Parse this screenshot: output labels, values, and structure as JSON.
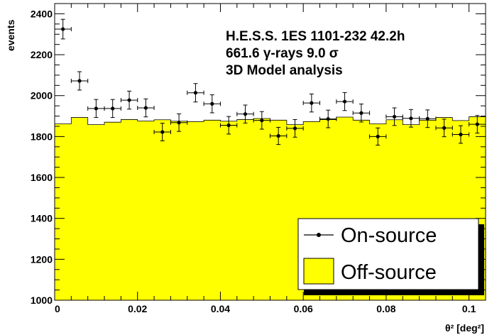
{
  "chart_data": {
    "type": "histogram",
    "title": "",
    "xlabel": "θ² [deg²]",
    "ylabel": "events",
    "xlim": [
      0,
      0.104
    ],
    "ylim": [
      1000,
      2450
    ],
    "x_ticks": [
      0,
      0.02,
      0.04,
      0.06,
      0.08,
      0.1
    ],
    "x_tick_labels": [
      "0",
      "0.02",
      "0.04",
      "0.06",
      "0.08",
      "0.1"
    ],
    "y_ticks": [
      1000,
      1200,
      1400,
      1600,
      1800,
      2000,
      2200,
      2400
    ],
    "y_tick_labels": [
      "1000",
      "1200",
      "1400",
      "1600",
      "1800",
      "2000",
      "2200",
      "2400"
    ],
    "bin_width": 0.004,
    "annotations": [
      "H.E.S.S. 1ES 1101-232 42.2h",
      "661.6 γ-rays   9.0 σ",
      "3D Model analysis"
    ],
    "legend": {
      "position": "bottom-right",
      "entries": [
        "On-source",
        "Off-source"
      ]
    },
    "series": [
      {
        "name": "On-source",
        "style": "points-with-errors",
        "color": "#000000",
        "x": [
          0.002,
          0.006,
          0.01,
          0.014,
          0.018,
          0.022,
          0.026,
          0.03,
          0.034,
          0.038,
          0.042,
          0.046,
          0.05,
          0.054,
          0.058,
          0.062,
          0.066,
          0.07,
          0.074,
          0.078,
          0.082,
          0.086,
          0.09,
          0.094,
          0.098,
          0.102
        ],
        "values": [
          2325,
          2072,
          1937,
          1937,
          1978,
          1940,
          1822,
          1868,
          2014,
          1960,
          1855,
          1910,
          1879,
          1803,
          1840,
          1964,
          1886,
          1971,
          1915,
          1800,
          1897,
          1889,
          1887,
          1842,
          1810,
          1860
        ],
        "errors": [
          48,
          45,
          44,
          44,
          44,
          44,
          43,
          43,
          45,
          44,
          43,
          44,
          43,
          42,
          43,
          44,
          43,
          44,
          44,
          42,
          43,
          43,
          43,
          43,
          43,
          43
        ]
      },
      {
        "name": "Off-source",
        "style": "filled-histogram",
        "color": "#ffff00",
        "bin_edges": [
          0,
          0.004,
          0.008,
          0.012,
          0.016,
          0.02,
          0.024,
          0.028,
          0.032,
          0.036,
          0.04,
          0.044,
          0.048,
          0.052,
          0.056,
          0.06,
          0.064,
          0.068,
          0.072,
          0.076,
          0.08,
          0.084,
          0.088,
          0.092,
          0.096,
          0.1,
          0.104
        ],
        "values": [
          1862,
          1893,
          1858,
          1870,
          1883,
          1876,
          1882,
          1875,
          1873,
          1880,
          1875,
          1883,
          1888,
          1880,
          1858,
          1873,
          1883,
          1895,
          1880,
          1862,
          1882,
          1858,
          1880,
          1893,
          1878,
          1897
        ]
      }
    ]
  }
}
